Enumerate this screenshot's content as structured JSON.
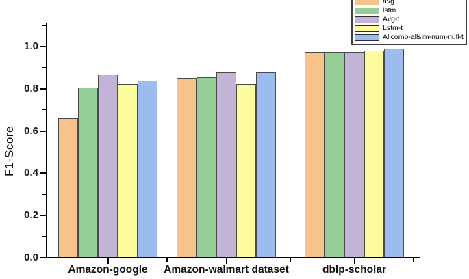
{
  "chart_data": {
    "type": "bar",
    "title": "",
    "ylabel": "F1-Score",
    "xlabel": "",
    "ylim": [
      0,
      1.1
    ],
    "yticks": [
      0.0,
      0.2,
      0.4,
      0.6,
      0.8,
      1.0
    ],
    "ytick_minor_step": 0.1,
    "grid": false,
    "legend_position": "top-right",
    "categories": [
      "Amazon-google",
      "Amazon-walmart dataset",
      "dblp-scholar"
    ],
    "series": [
      {
        "name": "avg",
        "color": "#F8C28C",
        "values": [
          0.66,
          0.85,
          0.975
        ]
      },
      {
        "name": "lstm",
        "color": "#95CE97",
        "values": [
          0.807,
          0.855,
          0.975
        ]
      },
      {
        "name": "Avg-t",
        "color": "#C3B4D7",
        "values": [
          0.866,
          0.876,
          0.975
        ]
      },
      {
        "name": "Lstm-t",
        "color": "#FDFC9D",
        "values": [
          0.821,
          0.822,
          0.981
        ]
      },
      {
        "name": "Allcomp-allsim-num-null-t",
        "color": "#9ABCEF",
        "values": [
          0.837,
          0.878,
          0.99
        ]
      }
    ]
  }
}
